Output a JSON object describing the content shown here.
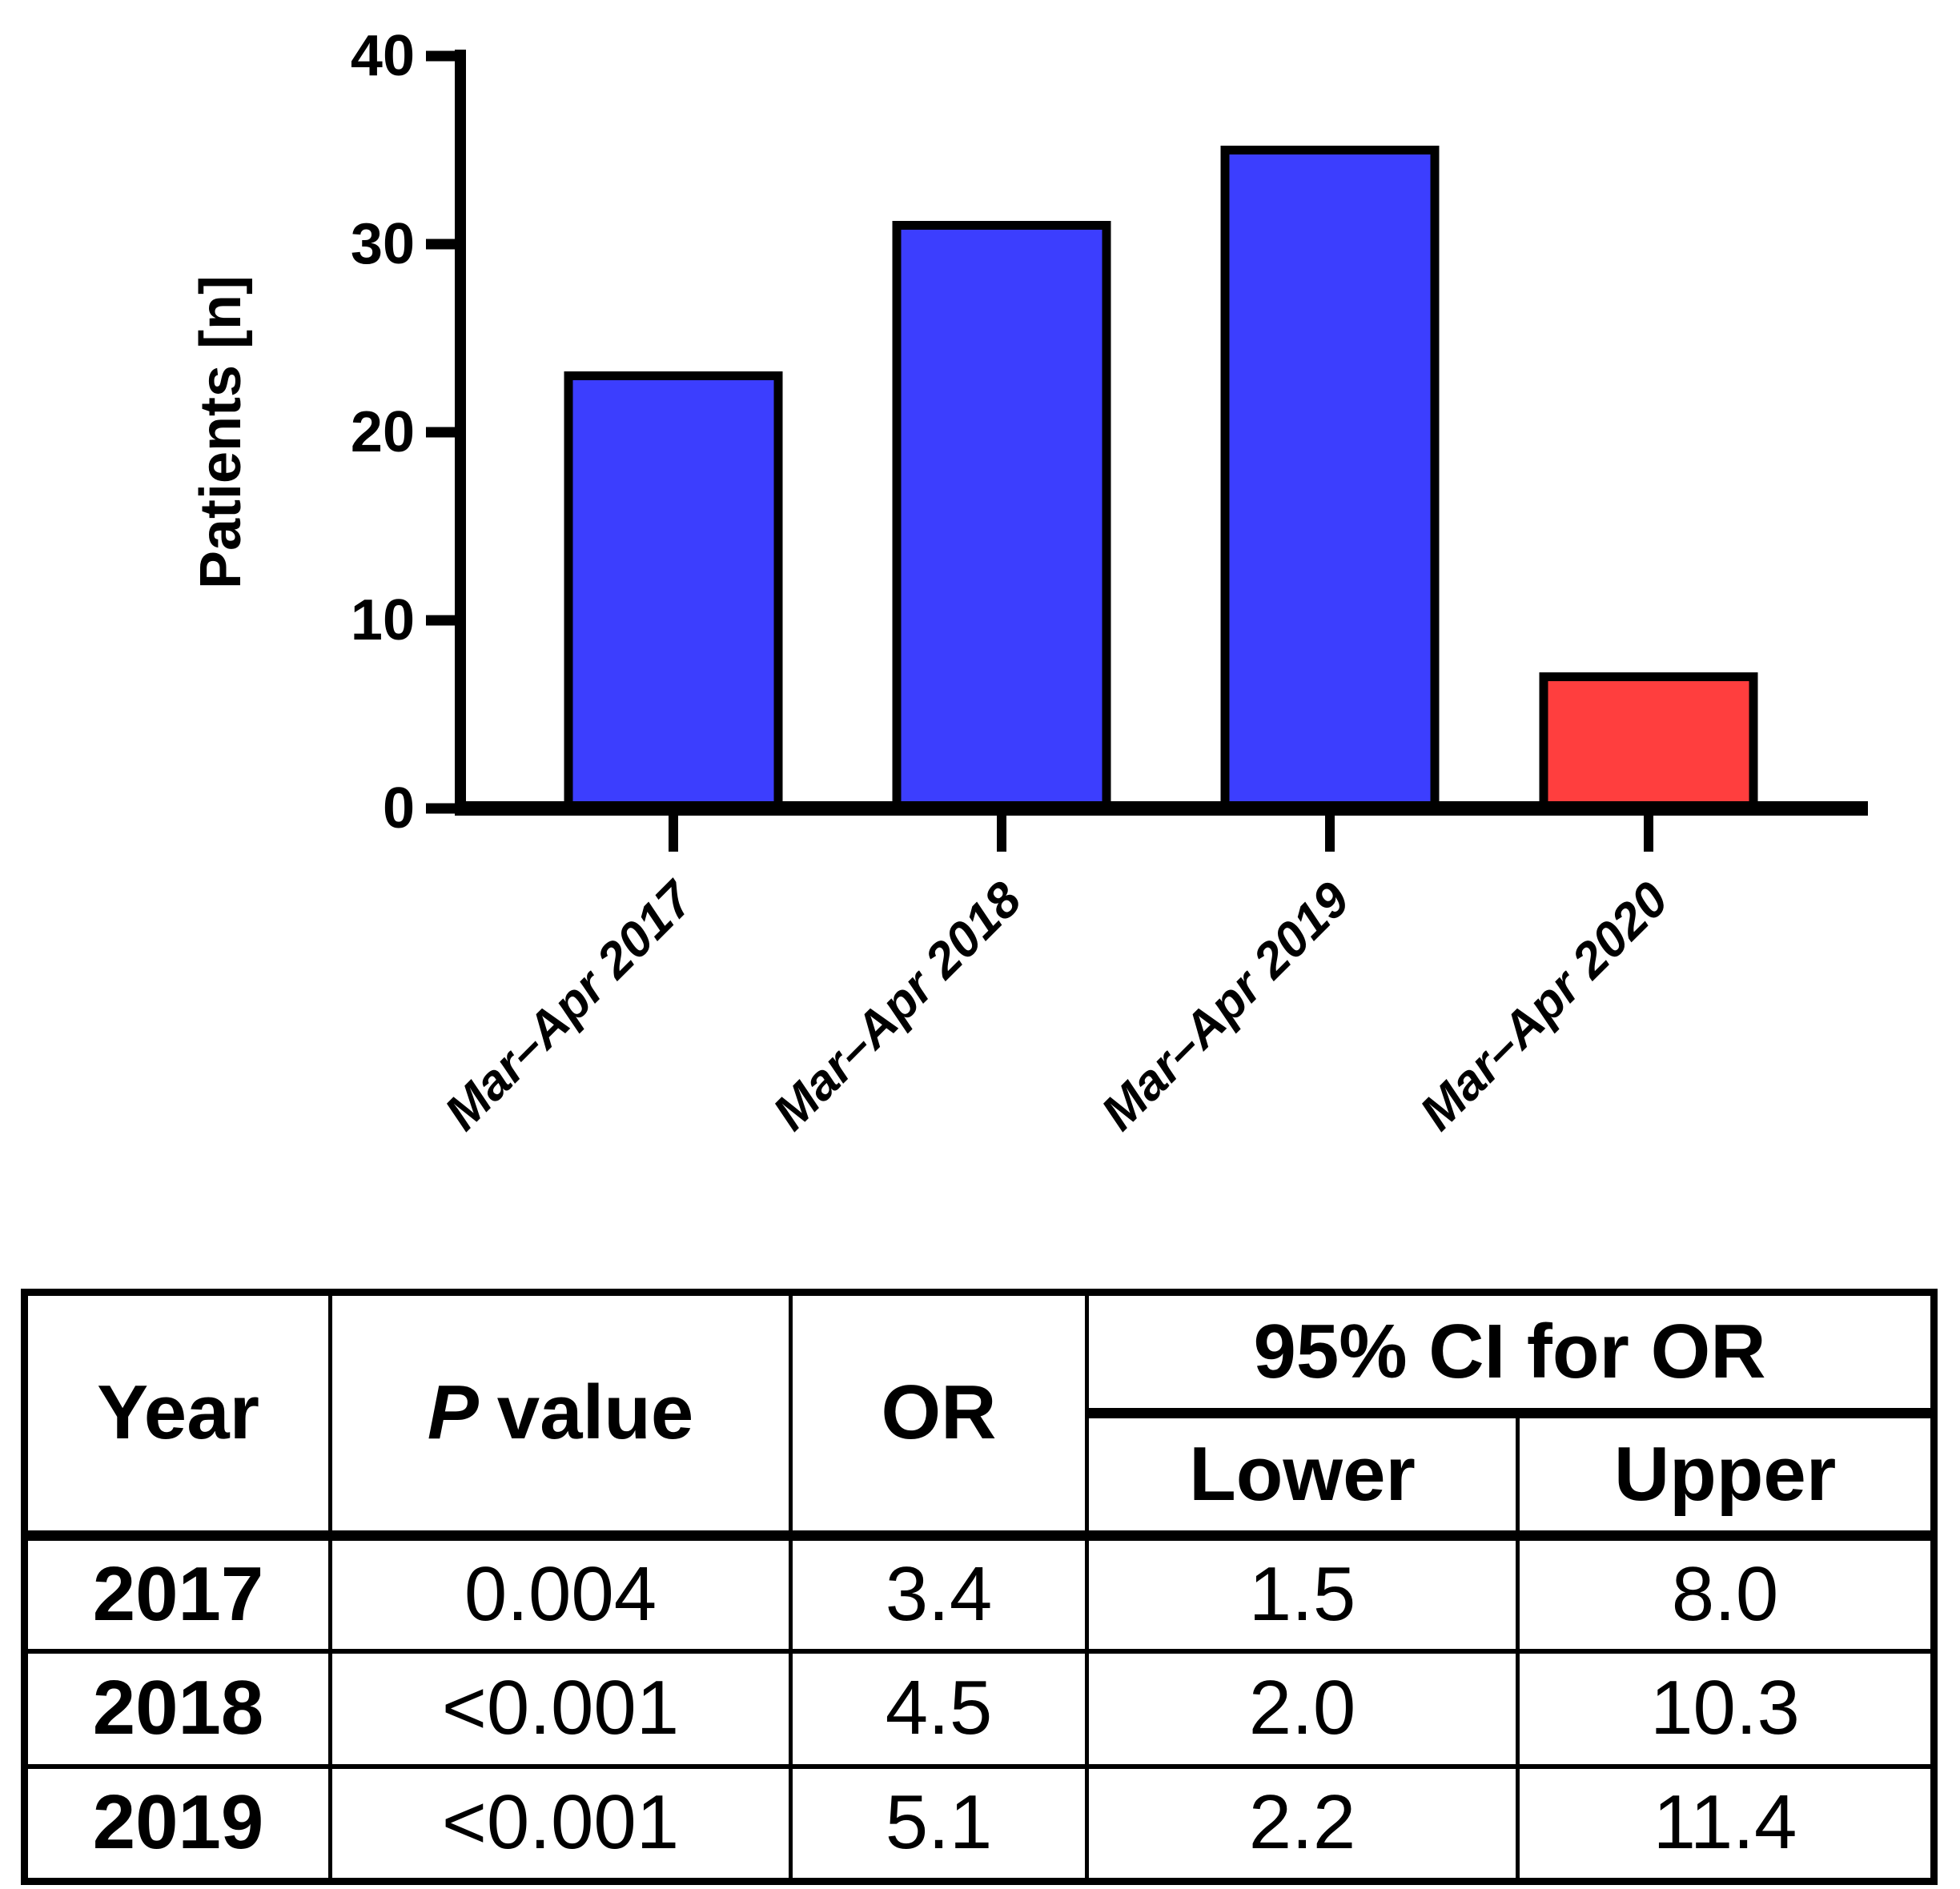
{
  "chart_data": {
    "type": "bar",
    "categories": [
      "Mar–Apr 2017",
      "Mar–Apr 2018",
      "Mar–Apr 2019",
      "Mar–Apr 2020"
    ],
    "values": [
      23,
      31,
      35,
      7
    ],
    "bar_colors": [
      "#3C3EFE",
      "#3C3EFE",
      "#3C3EFE",
      "#FF3E3E"
    ],
    "bar_edge_color": "#000000",
    "title": "",
    "xlabel": "",
    "ylabel": "Patients [n]",
    "ylim": [
      0,
      40
    ],
    "yticks": [
      0,
      10,
      20,
      30,
      40
    ],
    "grid": false,
    "legend": "none"
  },
  "table": {
    "headers": {
      "year": "Year",
      "p_italic": "P",
      "p_rest": "value",
      "or": "OR",
      "ci": "95% CI for OR",
      "lower": "Lower",
      "upper": "Upper"
    },
    "rows": [
      {
        "year": "2017",
        "p": "0.004",
        "or": "3.4",
        "lower": "1.5",
        "upper": "8.0"
      },
      {
        "year": "2018",
        "p": "<0.001",
        "or": "4.5",
        "lower": "2.0",
        "upper": "10.3"
      },
      {
        "year": "2019",
        "p": "<0.001",
        "or": "5.1",
        "lower": "2.2",
        "upper": "11.4"
      }
    ]
  },
  "colors": {
    "bar_blue": "#3C3EFE",
    "bar_red": "#FF3E3E",
    "axis_black": "#000000",
    "background": "#ffffff"
  }
}
